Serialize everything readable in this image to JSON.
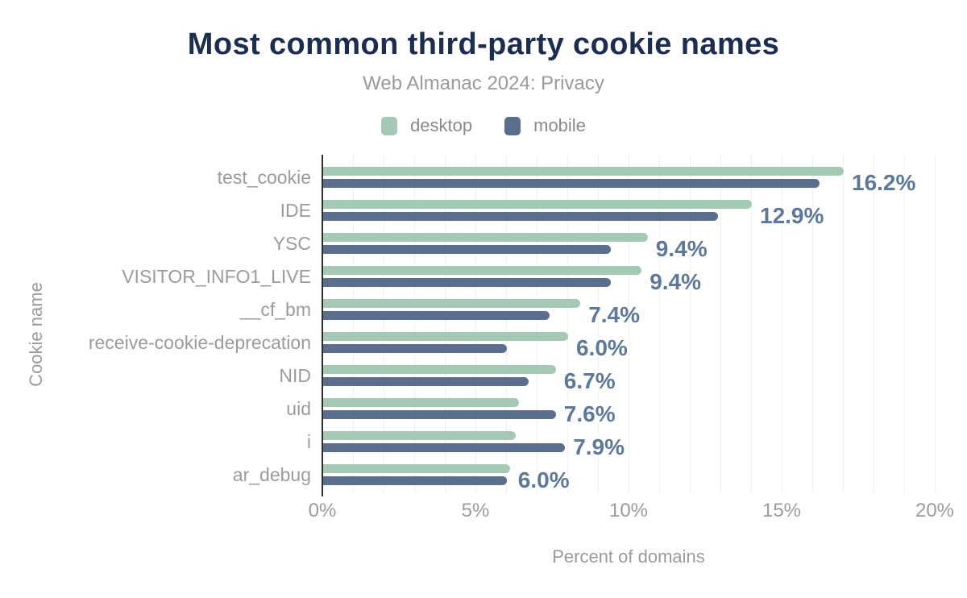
{
  "header": {
    "title": "Most common third-party cookie names",
    "subtitle": "Web Almanac 2024: Privacy"
  },
  "legend": [
    {
      "label": "desktop",
      "color": "#a6c9b6"
    },
    {
      "label": "mobile",
      "color": "#5b6e8e"
    }
  ],
  "chart_data": {
    "type": "bar",
    "orientation": "horizontal",
    "title": "Most common third-party cookie names",
    "subtitle": "Web Almanac 2024: Privacy",
    "xlabel": "Percent of domains",
    "ylabel": "Cookie name",
    "xlim": [
      0,
      20
    ],
    "grid": "vertical, every 1%",
    "legend_position": "top",
    "categories": [
      "test_cookie",
      "IDE",
      "YSC",
      "VISITOR_INFO1_LIVE",
      "__cf_bm",
      "receive-cookie-deprecation",
      "NID",
      "uid",
      "i",
      "ar_debug"
    ],
    "series": [
      {
        "name": "desktop",
        "color": "#a6c9b6",
        "values": [
          17.0,
          14.0,
          10.6,
          10.4,
          8.4,
          8.0,
          7.6,
          6.4,
          6.3,
          6.1
        ]
      },
      {
        "name": "mobile",
        "color": "#5b6e8e",
        "values": [
          16.2,
          12.9,
          9.4,
          9.4,
          7.4,
          6.0,
          6.7,
          7.6,
          7.9,
          6.0
        ]
      }
    ],
    "data_labels": [
      "16.2%",
      "12.9%",
      "9.4%",
      "9.4%",
      "7.4%",
      "6.0%",
      "6.7%",
      "7.6%",
      "7.9%",
      "6.0%"
    ],
    "xticks": [
      {
        "value": 0,
        "label": "0%"
      },
      {
        "value": 5,
        "label": "5%"
      },
      {
        "value": 10,
        "label": "10%"
      },
      {
        "value": 15,
        "label": "15%"
      },
      {
        "value": 20,
        "label": "20%"
      }
    ]
  },
  "colors": {
    "title": "#1d2d4f",
    "subtitle": "#9a9a9a",
    "axis_text": "#9b9b9b",
    "value_label": "#5e7899",
    "gridline": "#f0f0f1",
    "axis_line": "#2e2e2e",
    "background": "#ffffff"
  }
}
